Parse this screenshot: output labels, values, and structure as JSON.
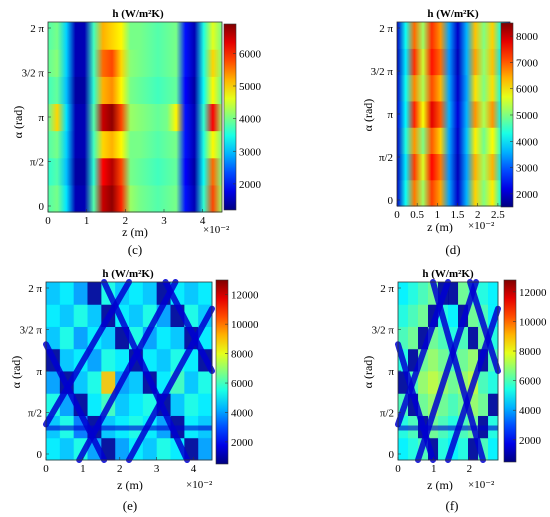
{
  "figure": {
    "panels": [
      "c",
      "d",
      "e",
      "f"
    ]
  },
  "chart_data": [
    {
      "panel": "(c)",
      "type": "heatmap",
      "title": "h (W/m²K)",
      "xlabel": "z (m)",
      "ylabel": "α (rad)",
      "x_exponent_label": "×10⁻²",
      "xlim": [
        0,
        4.5
      ],
      "ylim": [
        0,
        6.2832
      ],
      "x_ticks": [
        {
          "v": 0,
          "t": "0"
        },
        {
          "v": 1,
          "t": "1"
        },
        {
          "v": 2,
          "t": "2"
        },
        {
          "v": 3,
          "t": "3"
        },
        {
          "v": 4,
          "t": "4"
        }
      ],
      "y_ticks": [
        {
          "v": 0,
          "t": "0"
        },
        {
          "v": 1.5708,
          "t": "π/2"
        },
        {
          "v": 3.1416,
          "t": "π"
        },
        {
          "v": 4.7124,
          "t": "3/2 π"
        },
        {
          "v": 6.2832,
          "t": "2 π"
        }
      ],
      "colorbar": {
        "min": 1200,
        "max": 6900,
        "ticks": [
          2000,
          3000,
          4000,
          5000,
          6000
        ]
      },
      "pattern": "stripes",
      "z": [
        [
          3800,
          4000,
          3200,
          1500,
          1500,
          3800,
          6500,
          6800,
          6000,
          4200,
          4000,
          3900,
          3800,
          3900,
          4000,
          2000,
          1500,
          3600,
          5800,
          4200
        ],
        [
          3600,
          3800,
          3000,
          1400,
          1400,
          3600,
          6200,
          6600,
          5800,
          4000,
          3900,
          3800,
          3700,
          3800,
          3900,
          1900,
          1400,
          3400,
          5600,
          4000
        ],
        [
          3800,
          4000,
          3100,
          1500,
          1500,
          3700,
          5000,
          5200,
          4800,
          4000,
          4000,
          3900,
          3800,
          3900,
          4000,
          2000,
          1500,
          3500,
          4800,
          4000
        ],
        [
          3900,
          5000,
          3200,
          1500,
          1500,
          3800,
          6500,
          6800,
          5800,
          4200,
          4100,
          4000,
          3900,
          4000,
          4800,
          2000,
          1500,
          3600,
          6200,
          4200
        ],
        [
          3700,
          3900,
          3000,
          1400,
          1400,
          3600,
          5200,
          5400,
          4800,
          4000,
          3900,
          3800,
          3700,
          3800,
          3900,
          1900,
          1400,
          3400,
          4800,
          3900
        ],
        [
          3900,
          4100,
          3100,
          1500,
          1500,
          3700,
          5600,
          5800,
          5000,
          4100,
          4000,
          3900,
          3800,
          3900,
          4000,
          2000,
          1500,
          3500,
          5000,
          4100
        ],
        [
          3800,
          4000,
          3100,
          1500,
          1500,
          3700,
          5200,
          5000,
          4800,
          4000,
          4000,
          3900,
          3800,
          3900,
          4000,
          2000,
          1500,
          3500,
          4600,
          4000
        ]
      ]
    },
    {
      "panel": "(d)",
      "type": "heatmap",
      "title": "h (W/m²K)",
      "xlabel": "z (m)",
      "ylabel": "",
      "x_exponent_label": "×10⁻²",
      "xlim": [
        0,
        2.8
      ],
      "ylim": [
        0,
        6.2832
      ],
      "x_ticks": [
        {
          "v": 0,
          "t": "0"
        },
        {
          "v": 0.5,
          "t": "0.5"
        },
        {
          "v": 1,
          "t": "1"
        },
        {
          "v": 1.5,
          "t": "1.5"
        },
        {
          "v": 2,
          "t": "2"
        },
        {
          "v": 2.5,
          "t": "2.5"
        }
      ],
      "y_ticks": [
        {
          "v": 0,
          "t": "0"
        },
        {
          "v": 1.5708,
          "t": "π/2"
        },
        {
          "v": 3.1416,
          "t": "π"
        },
        {
          "v": 4.7124,
          "t": "3/2 π"
        },
        {
          "v": 6.2832,
          "t": "2 π"
        }
      ],
      "colorbar": {
        "min": 1500,
        "max": 8500,
        "ticks": [
          2000,
          3000,
          4000,
          5000,
          6000,
          7000,
          8000
        ]
      },
      "pattern": "stripes",
      "z": [
        [
          2000,
          4200,
          6800,
          5200,
          7200,
          6500,
          3500,
          2000,
          3600,
          6200,
          5000,
          6000,
          4200,
          2200
        ],
        [
          1900,
          4000,
          7200,
          5600,
          7600,
          6800,
          3400,
          1900,
          3500,
          6400,
          5200,
          6400,
          4000,
          2100
        ],
        [
          2000,
          4300,
          6600,
          5000,
          7000,
          6200,
          3500,
          2000,
          3700,
          6000,
          4900,
          5900,
          4300,
          2200
        ],
        [
          2100,
          4100,
          7400,
          5800,
          7800,
          7000,
          3600,
          2100,
          3600,
          6600,
          5300,
          6600,
          4100,
          2300
        ],
        [
          2000,
          4200,
          6700,
          5300,
          7100,
          6400,
          3500,
          2000,
          3500,
          6100,
          5000,
          6100,
          4200,
          2200
        ],
        [
          1900,
          4000,
          7300,
          5500,
          7500,
          6900,
          3400,
          1900,
          3600,
          6500,
          5100,
          6300,
          4000,
          2100
        ],
        [
          2000,
          4200,
          6900,
          5200,
          7300,
          6600,
          3500,
          2000,
          3600,
          6300,
          5000,
          6200,
          4200,
          2200
        ]
      ]
    },
    {
      "panel": "(e)",
      "type": "heatmap",
      "title": "h (W/m²K)",
      "xlabel": "z (m)",
      "ylabel": "α (rad)",
      "x_exponent_label": "×10⁻²",
      "xlim": [
        0,
        4.5
      ],
      "ylim": [
        0,
        6.2832
      ],
      "x_ticks": [
        {
          "v": 0,
          "t": "0"
        },
        {
          "v": 1,
          "t": "1"
        },
        {
          "v": 2,
          "t": "2"
        },
        {
          "v": 3,
          "t": "3"
        },
        {
          "v": 4,
          "t": "4"
        }
      ],
      "y_ticks": [
        {
          "v": 0,
          "t": "0"
        },
        {
          "v": 1.5708,
          "t": "π/2"
        },
        {
          "v": 3.1416,
          "t": "π"
        },
        {
          "v": 4.7124,
          "t": "3/2 π"
        },
        {
          "v": 6.2832,
          "t": "2 π"
        }
      ],
      "colorbar": {
        "min": 500,
        "max": 13000,
        "ticks": [
          2000,
          4000,
          6000,
          8000,
          10000,
          12000
        ]
      },
      "pattern": "diamond-lattice",
      "z": [
        [
          5000,
          4500,
          5500,
          4000,
          800,
          4000,
          5000,
          4500,
          5500,
          5000,
          800,
          4000
        ],
        [
          4500,
          5500,
          3500,
          800,
          4500,
          5000,
          5500,
          5000,
          4000,
          800,
          5000,
          4500
        ],
        [
          5500,
          4000,
          800,
          5000,
          6000,
          4500,
          5000,
          5500,
          800,
          4500,
          5500,
          5000
        ],
        [
          4000,
          800,
          4500,
          5500,
          9000,
          4000,
          4500,
          800,
          5000,
          6000,
          4500,
          5500
        ],
        [
          800,
          4500,
          5000,
          4000,
          5500,
          5000,
          800,
          5000,
          4500,
          5500,
          5000,
          800
        ],
        [
          4500,
          5500,
          4000,
          5000,
          4500,
          800,
          5500,
          4000,
          5000,
          4500,
          800,
          5000
        ],
        [
          5000,
          4500,
          5500,
          4500,
          800,
          5000,
          4500,
          5500,
          4000,
          800,
          5500,
          4500
        ],
        [
          4500,
          5000,
          4000,
          800,
          5500,
          4500,
          5000,
          4500,
          800,
          5000,
          4500,
          5000
        ]
      ]
    },
    {
      "panel": "(f)",
      "type": "heatmap",
      "title": "h (W/m²K)",
      "xlabel": "z (m)",
      "ylabel": "α (rad)",
      "x_exponent_label": "×10⁻²",
      "xlim": [
        0,
        2.8
      ],
      "ylim": [
        0,
        6.2832
      ],
      "x_ticks": [
        {
          "v": 0,
          "t": "0"
        },
        {
          "v": 1,
          "t": "1"
        },
        {
          "v": 2,
          "t": "2"
        }
      ],
      "y_ticks": [
        {
          "v": 0,
          "t": "0"
        },
        {
          "v": 1.5708,
          "t": "π/2"
        },
        {
          "v": 3.1416,
          "t": "π"
        },
        {
          "v": 4.7124,
          "t": "3/2 π"
        },
        {
          "v": 6.2832,
          "t": "2 π"
        }
      ],
      "colorbar": {
        "min": 500,
        "max": 12800,
        "ticks": [
          2000,
          4000,
          6000,
          8000,
          10000,
          12000
        ]
      },
      "pattern": "diamond-lattice",
      "z": [
        [
          5000,
          5500,
          6000,
          800,
          5500,
          5000,
          5500,
          800,
          6000,
          5000
        ],
        [
          5500,
          6000,
          800,
          6500,
          6000,
          5500,
          6000,
          6500,
          800,
          5500
        ],
        [
          6000,
          800,
          6500,
          7000,
          6500,
          6000,
          6500,
          7000,
          6500,
          800
        ],
        [
          800,
          6000,
          7000,
          7500,
          7000,
          6500,
          7000,
          7500,
          6000,
          5500
        ],
        [
          5500,
          800,
          6500,
          7000,
          6500,
          6000,
          6500,
          7000,
          800,
          6000
        ],
        [
          6000,
          6500,
          800,
          6500,
          6000,
          5500,
          6000,
          800,
          6500,
          5500
        ],
        [
          5500,
          6000,
          6500,
          800,
          5500,
          5000,
          800,
          6500,
          6000,
          5000
        ],
        [
          5000,
          5500,
          6000,
          6500,
          800,
          800,
          6500,
          6000,
          5500,
          5000
        ]
      ]
    }
  ]
}
